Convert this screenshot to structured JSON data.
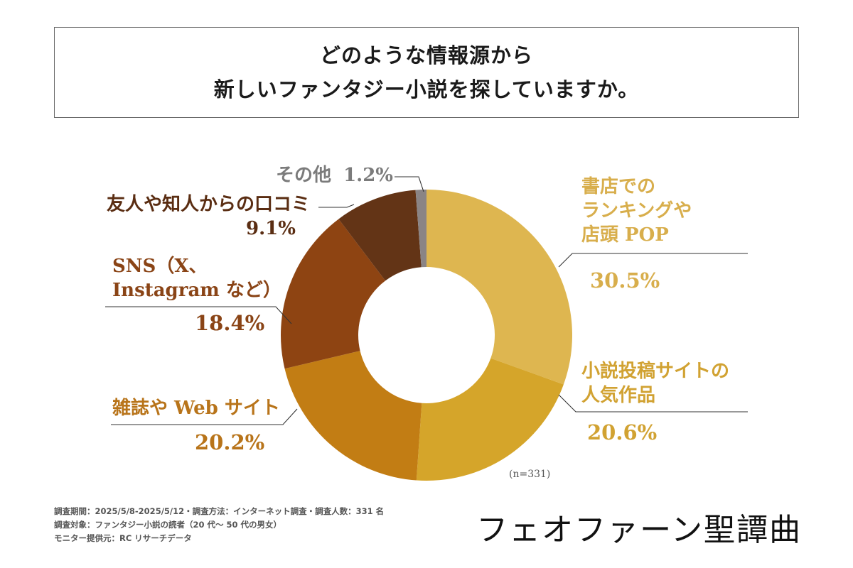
{
  "chart_data": {
    "type": "donut",
    "title_lines": [
      "どのような情報源から",
      "新しいファンタジー小説を探していますか。"
    ],
    "slices": [
      {
        "name_lines": [
          "書店での",
          "ランキングや",
          "店頭 POP"
        ],
        "value": 30.5,
        "label": "30.5%",
        "color": "#deb650",
        "label_color": "#d8ae4c"
      },
      {
        "name_lines": [
          "小説投稿サイトの",
          "人気作品"
        ],
        "value": 20.6,
        "label": "20.6%",
        "color": "#d5a52a",
        "label_color": "#d1a232"
      },
      {
        "name_lines": [
          "雑誌や Web サイト"
        ],
        "value": 20.2,
        "label": "20.2%",
        "color": "#c27d14",
        "label_color": "#b8741a"
      },
      {
        "name_lines": [
          "SNS（X、",
          "Instagram など）"
        ],
        "value": 18.4,
        "label": "18.4%",
        "color": "#8e4412",
        "label_color": "#8a4416"
      },
      {
        "name_lines": [
          "友人や知人からの口コミ"
        ],
        "value": 9.1,
        "label": "9.1%",
        "color": "#633416",
        "label_color": "#5a2d12"
      },
      {
        "name_lines": [
          "その他"
        ],
        "value": 1.2,
        "label": "1.2%",
        "color": "#8a8485",
        "label_color": "#7b7b7b"
      }
    ],
    "sample_note": "(n=331)"
  },
  "footnotes": [
    "調査期間：2025/5/8-2025/5/12・調査方法：インターネット調査・調査人数：331 名",
    "調査対象：ファンタジー小説の読者（20 代〜 50 代の男女）",
    "モニター提供元：RC リサーチデータ"
  ],
  "brand": "フェオファーン聖譚曲"
}
